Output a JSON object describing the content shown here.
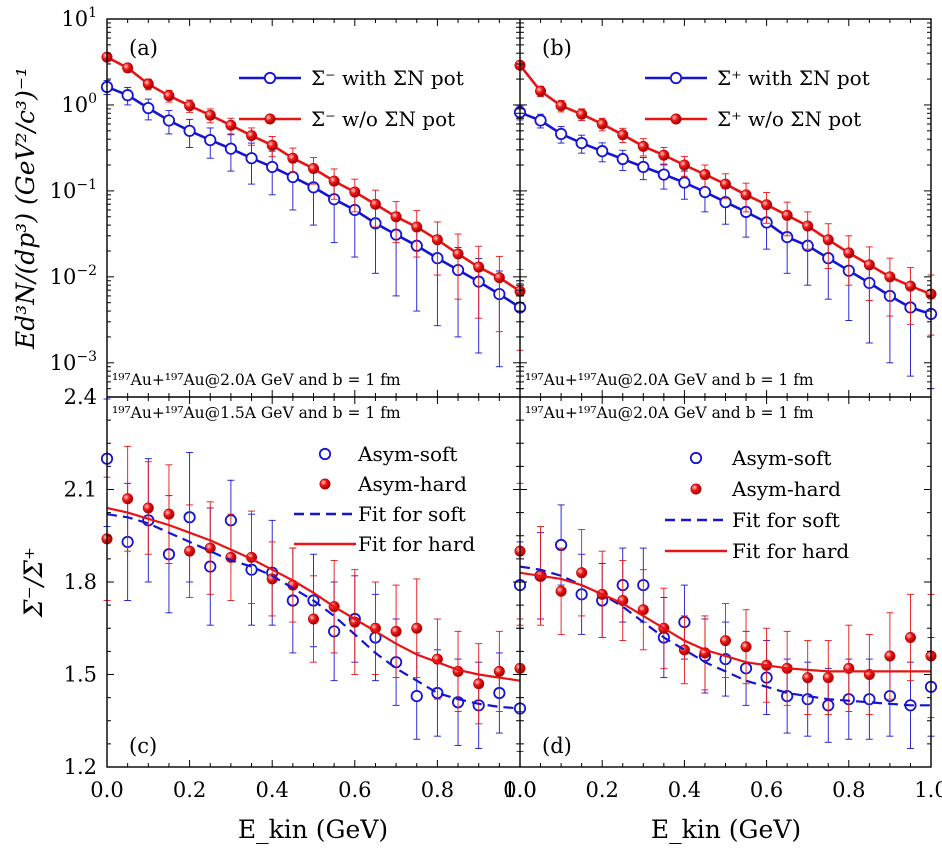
{
  "chart_data": [
    {
      "panel": "a",
      "type": "line",
      "scale": "log",
      "panel_label": "(a)",
      "ylabel": "Ed³N/(dp³) (GeV²/c³)⁻¹",
      "xlabel": "E_kin (GeV)",
      "xlim": [
        0,
        1.0
      ],
      "ylim": [
        0.0004,
        10
      ],
      "y_ticks": [
        {
          "value": 10,
          "base": "10",
          "exp": "1"
        },
        {
          "value": 1,
          "base": "10",
          "exp": "0"
        },
        {
          "value": 0.1,
          "base": "10",
          "exp": "−1"
        },
        {
          "value": 0.01,
          "base": "10",
          "exp": "−2"
        },
        {
          "value": 0.001,
          "base": "10",
          "exp": "−3"
        }
      ],
      "annotation": "¹⁹⁷Au+¹⁹⁷Au@2.0A GeV and b = 1 fm",
      "legend_position": "top-right",
      "x": [
        0,
        0.05,
        0.1,
        0.15,
        0.2,
        0.25,
        0.3,
        0.35,
        0.4,
        0.45,
        0.5,
        0.55,
        0.6,
        0.65,
        0.7,
        0.75,
        0.8,
        0.85,
        0.9,
        0.95,
        1.0
      ],
      "series": [
        {
          "name": "Σ⁻ with ΣN pot",
          "style": "open-line",
          "color": "#1414d2",
          "values": [
            1.62,
            1.3,
            0.92,
            0.66,
            0.5,
            0.39,
            0.31,
            0.24,
            0.19,
            0.145,
            0.11,
            0.08,
            0.06,
            0.042,
            0.031,
            0.023,
            0.0165,
            0.012,
            0.0088,
            0.0063,
            0.0044
          ],
          "err_low": [
            0.3,
            0.3,
            0.25,
            0.2,
            0.18,
            0.15,
            0.14,
            0.12,
            0.1,
            0.085,
            0.07,
            0.055,
            0.043,
            0.031,
            0.025,
            0.019,
            0.0138,
            0.01,
            0.0075,
            0.0054,
            0.0039
          ],
          "err_high": [
            0.3,
            0.3,
            0.25,
            0.2,
            0.18,
            0.15,
            0.14,
            0.12,
            0.1,
            0.085,
            0.07,
            0.055,
            0.043,
            0.031,
            0.025,
            0.019,
            0.0138,
            0.01,
            0.0075,
            0.0054,
            0.0039
          ]
        },
        {
          "name": "Σ⁻ w/o ΣN pot",
          "style": "filled-line",
          "color": "#e61414",
          "values": [
            3.6,
            2.7,
            1.75,
            1.28,
            0.98,
            0.76,
            0.58,
            0.44,
            0.34,
            0.24,
            0.182,
            0.13,
            0.097,
            0.07,
            0.05,
            0.038,
            0.027,
            0.0185,
            0.013,
            0.0098,
            0.0068
          ],
          "err_low": [
            0.35,
            0.3,
            0.25,
            0.2,
            0.16,
            0.14,
            0.12,
            0.1,
            0.09,
            0.075,
            0.062,
            0.05,
            0.04,
            0.032,
            0.025,
            0.021,
            0.0165,
            0.013,
            0.0097,
            0.0075,
            0.0054
          ],
          "err_high": [
            0.35,
            0.3,
            0.25,
            0.2,
            0.16,
            0.14,
            0.12,
            0.1,
            0.09,
            0.075,
            0.062,
            0.05,
            0.04,
            0.032,
            0.025,
            0.021,
            0.0165,
            0.013,
            0.0097,
            0.0075,
            0.0054
          ]
        }
      ]
    },
    {
      "panel": "b",
      "type": "line",
      "scale": "log",
      "panel_label": "(b)",
      "xlim": [
        0,
        1.0
      ],
      "ylim": [
        0.0004,
        10
      ],
      "annotation": "¹⁹⁷Au+¹⁹⁷Au@2.0A GeV and b = 1 fm",
      "legend_position": "top-right",
      "x": [
        0,
        0.05,
        0.1,
        0.15,
        0.2,
        0.25,
        0.3,
        0.35,
        0.4,
        0.45,
        0.5,
        0.55,
        0.6,
        0.65,
        0.7,
        0.75,
        0.8,
        0.85,
        0.9,
        0.95,
        1.0
      ],
      "series": [
        {
          "name": "Σ⁺ with ΣN pot",
          "style": "open-line",
          "color": "#1414d2",
          "values": [
            0.82,
            0.66,
            0.46,
            0.36,
            0.29,
            0.235,
            0.19,
            0.155,
            0.125,
            0.097,
            0.074,
            0.057,
            0.043,
            0.029,
            0.023,
            0.0165,
            0.0118,
            0.0085,
            0.006,
            0.0044,
            0.0037
          ],
          "err_low": [
            0.15,
            0.12,
            0.1,
            0.085,
            0.072,
            0.062,
            0.055,
            0.05,
            0.045,
            0.04,
            0.033,
            0.028,
            0.022,
            0.018,
            0.015,
            0.011,
            0.0087,
            0.0068,
            0.005,
            0.0037,
            0.0032
          ],
          "err_high": [
            0.15,
            0.12,
            0.1,
            0.085,
            0.072,
            0.062,
            0.055,
            0.05,
            0.045,
            0.04,
            0.033,
            0.028,
            0.022,
            0.018,
            0.015,
            0.011,
            0.0087,
            0.0068,
            0.005,
            0.0037,
            0.0032
          ]
        },
        {
          "name": "Σ⁺ w/o ΣN pot",
          "style": "filled-line",
          "color": "#e61414",
          "values": [
            2.9,
            1.45,
            0.98,
            0.78,
            0.6,
            0.45,
            0.33,
            0.26,
            0.2,
            0.155,
            0.12,
            0.09,
            0.069,
            0.052,
            0.039,
            0.027,
            0.019,
            0.0138,
            0.01,
            0.0078,
            0.0063
          ],
          "err_low": [
            0.3,
            0.2,
            0.15,
            0.12,
            0.1,
            0.085,
            0.075,
            0.06,
            0.052,
            0.045,
            0.038,
            0.033,
            0.027,
            0.022,
            0.018,
            0.0145,
            0.011,
            0.0085,
            0.0065,
            0.005,
            0.0042
          ],
          "err_high": [
            0.3,
            0.2,
            0.15,
            0.12,
            0.1,
            0.085,
            0.075,
            0.06,
            0.052,
            0.045,
            0.038,
            0.033,
            0.027,
            0.022,
            0.018,
            0.0145,
            0.011,
            0.0085,
            0.0065,
            0.005,
            0.0042
          ]
        }
      ]
    },
    {
      "panel": "c",
      "type": "scatter",
      "scale": "linear",
      "panel_label": "(c)",
      "ylabel": "Σ⁻/Σ⁺",
      "xlabel": "E_kin (GeV)",
      "xlim": [
        0,
        1.0
      ],
      "ylim": [
        1.2,
        2.4
      ],
      "x_ticks": [
        "0.0",
        "0.2",
        "0.4",
        "0.6",
        "0.8",
        "1.0"
      ],
      "y_ticks": [
        "1.2",
        "1.5",
        "1.8",
        "2.1",
        "2.4"
      ],
      "annotation": "¹⁹⁷Au+¹⁹⁷Au@1.5A GeV and b = 1 fm",
      "legend_position": "top-right",
      "x": [
        0,
        0.05,
        0.1,
        0.15,
        0.2,
        0.25,
        0.3,
        0.35,
        0.4,
        0.45,
        0.5,
        0.55,
        0.6,
        0.65,
        0.7,
        0.75,
        0.8,
        0.85,
        0.9,
        0.95,
        1.0
      ],
      "series": [
        {
          "name": "Asym-soft",
          "style": "open",
          "color": "#1414d2",
          "values": [
            2.2,
            1.93,
            2.0,
            1.89,
            2.01,
            1.85,
            2.0,
            1.84,
            1.83,
            1.74,
            1.74,
            1.64,
            1.68,
            1.62,
            1.54,
            1.43,
            1.44,
            1.41,
            1.4,
            1.44,
            1.39
          ],
          "err": [
            0.22,
            0.19,
            0.2,
            0.19,
            0.21,
            0.19,
            0.13,
            0.18,
            0.17,
            0.17,
            0.15,
            0.16,
            0.14,
            0.14,
            0.14,
            0.14,
            0.14,
            0.14,
            0.14,
            0.13,
            0.14
          ]
        },
        {
          "name": "Asym-hard",
          "style": "filled",
          "color": "#e61414",
          "values": [
            1.94,
            2.07,
            2.04,
            2.02,
            1.9,
            1.91,
            1.88,
            1.88,
            1.81,
            1.79,
            1.68,
            1.72,
            1.67,
            1.65,
            1.64,
            1.65,
            1.55,
            1.51,
            1.47,
            1.51,
            1.52
          ],
          "err": [
            0.2,
            0.17,
            0.15,
            0.16,
            0.15,
            0.15,
            0.14,
            0.15,
            0.12,
            0.12,
            0.14,
            0.15,
            0.17,
            0.15,
            0.15,
            0.16,
            0.13,
            0.13,
            0.13,
            0.13,
            0.14
          ]
        },
        {
          "name": "Fit for soft",
          "style": "dashed",
          "color": "#1414d2",
          "values": [
            2.02,
            2.01,
            1.99,
            1.96,
            1.93,
            1.9,
            1.87,
            1.85,
            1.82,
            1.78,
            1.74,
            1.69,
            1.63,
            1.57,
            1.52,
            1.48,
            1.44,
            1.42,
            1.405,
            1.395,
            1.39
          ]
        },
        {
          "name": "Fit for hard",
          "style": "solid",
          "color": "#e61414",
          "values": [
            2.04,
            2.025,
            2.005,
            1.985,
            1.96,
            1.935,
            1.905,
            1.875,
            1.84,
            1.805,
            1.765,
            1.72,
            1.68,
            1.64,
            1.6,
            1.565,
            1.54,
            1.515,
            1.5,
            1.49,
            1.48
          ]
        }
      ]
    },
    {
      "panel": "d",
      "type": "scatter",
      "scale": "linear",
      "panel_label": "(d)",
      "xlabel": "E_kin (GeV)",
      "xlim": [
        0,
        1.0
      ],
      "ylim": [
        1.2,
        2.4
      ],
      "x_ticks": [
        "0.0",
        "0.2",
        "0.4",
        "0.6",
        "0.8",
        "1.0"
      ],
      "annotation": "¹⁹⁷Au+¹⁹⁷Au@2.0A GeV and b = 1 fm",
      "legend_position": "top-right",
      "x": [
        0,
        0.05,
        0.1,
        0.15,
        0.2,
        0.25,
        0.3,
        0.35,
        0.4,
        0.45,
        0.5,
        0.55,
        0.6,
        0.65,
        0.7,
        0.75,
        0.8,
        0.85,
        0.9,
        0.95,
        1.0
      ],
      "series": [
        {
          "name": "Asym-soft",
          "style": "open",
          "color": "#1414d2",
          "values": [
            1.79,
            1.82,
            1.92,
            1.76,
            1.74,
            1.79,
            1.79,
            1.62,
            1.67,
            1.56,
            1.55,
            1.52,
            1.49,
            1.43,
            1.42,
            1.4,
            1.42,
            1.42,
            1.43,
            1.4,
            1.46
          ],
          "err": [
            0.14,
            0.14,
            0.13,
            0.13,
            0.12,
            0.12,
            0.12,
            0.13,
            0.12,
            0.12,
            0.12,
            0.12,
            0.12,
            0.12,
            0.12,
            0.12,
            0.13,
            0.13,
            0.13,
            0.14,
            0.16
          ]
        },
        {
          "name": "Asym-hard",
          "style": "filled",
          "color": "#e61414",
          "values": [
            1.9,
            1.82,
            1.77,
            1.83,
            1.76,
            1.74,
            1.71,
            1.65,
            1.58,
            1.57,
            1.61,
            1.59,
            1.53,
            1.52,
            1.49,
            1.49,
            1.52,
            1.5,
            1.56,
            1.62,
            1.56
          ],
          "err": [
            0.22,
            0.16,
            0.14,
            0.14,
            0.14,
            0.13,
            0.13,
            0.13,
            0.11,
            0.12,
            0.12,
            0.12,
            0.12,
            0.12,
            0.12,
            0.12,
            0.14,
            0.13,
            0.14,
            0.14,
            0.2
          ]
        },
        {
          "name": "Fit for soft",
          "style": "dashed",
          "color": "#1414d2",
          "values": [
            1.85,
            1.84,
            1.82,
            1.79,
            1.76,
            1.72,
            1.67,
            1.62,
            1.58,
            1.54,
            1.51,
            1.48,
            1.46,
            1.44,
            1.43,
            1.42,
            1.415,
            1.41,
            1.405,
            1.4,
            1.4
          ]
        },
        {
          "name": "Fit for hard",
          "style": "solid",
          "color": "#e61414",
          "values": [
            1.83,
            1.82,
            1.81,
            1.79,
            1.76,
            1.73,
            1.69,
            1.65,
            1.61,
            1.58,
            1.56,
            1.54,
            1.53,
            1.52,
            1.515,
            1.51,
            1.51,
            1.51,
            1.51,
            1.51,
            1.51
          ]
        }
      ]
    }
  ]
}
